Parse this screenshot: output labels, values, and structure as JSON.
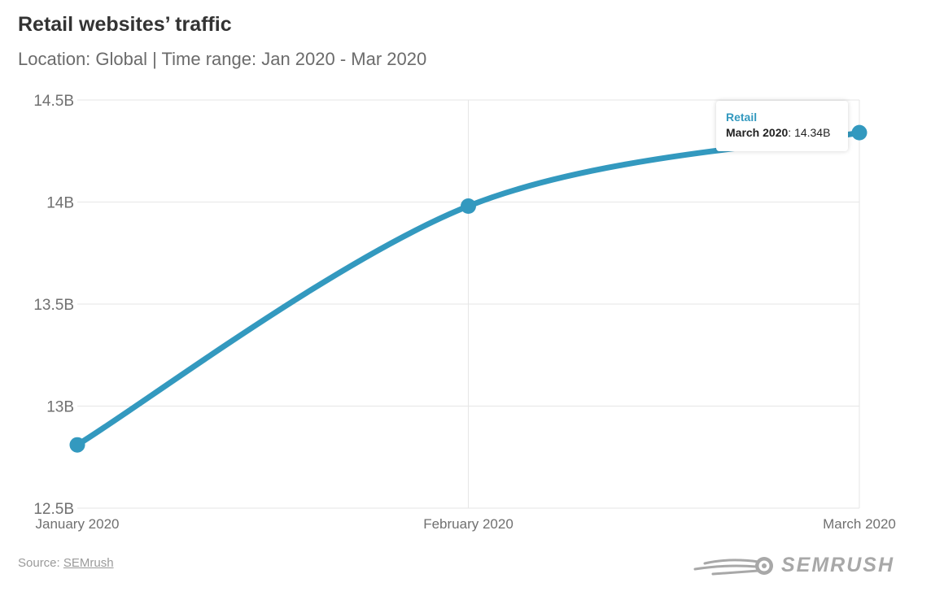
{
  "title": "Retail websites’ traffic",
  "subtitle": "Location: Global | Time range: Jan 2020 - Mar 2020",
  "source": {
    "prefix": "Source: ",
    "link_label": "SEMrush"
  },
  "logo": {
    "text": "SEMRUSH",
    "icon": "semrush-fireball-icon"
  },
  "tooltip": {
    "series": "Retail",
    "category": "March 2020",
    "separator": ": ",
    "value_label": "14.34B"
  },
  "colors": {
    "line": "#3399bf",
    "grid": "#e6e6e6",
    "text": "#707070"
  },
  "chart_data": {
    "type": "line",
    "title": "Retail websites’ traffic",
    "categories": [
      "January 2020",
      "February 2020",
      "March 2020"
    ],
    "series": [
      {
        "name": "Retail",
        "values": [
          12.81,
          13.98,
          14.34
        ]
      }
    ],
    "y_ticks": [
      12.5,
      13,
      13.5,
      14,
      14.5
    ],
    "y_tick_labels": [
      "12.5B",
      "13B",
      "13.5B",
      "14B",
      "14.5B"
    ],
    "ylim": [
      12.5,
      14.5
    ],
    "unit": "B",
    "grid": true,
    "legend": "none"
  }
}
